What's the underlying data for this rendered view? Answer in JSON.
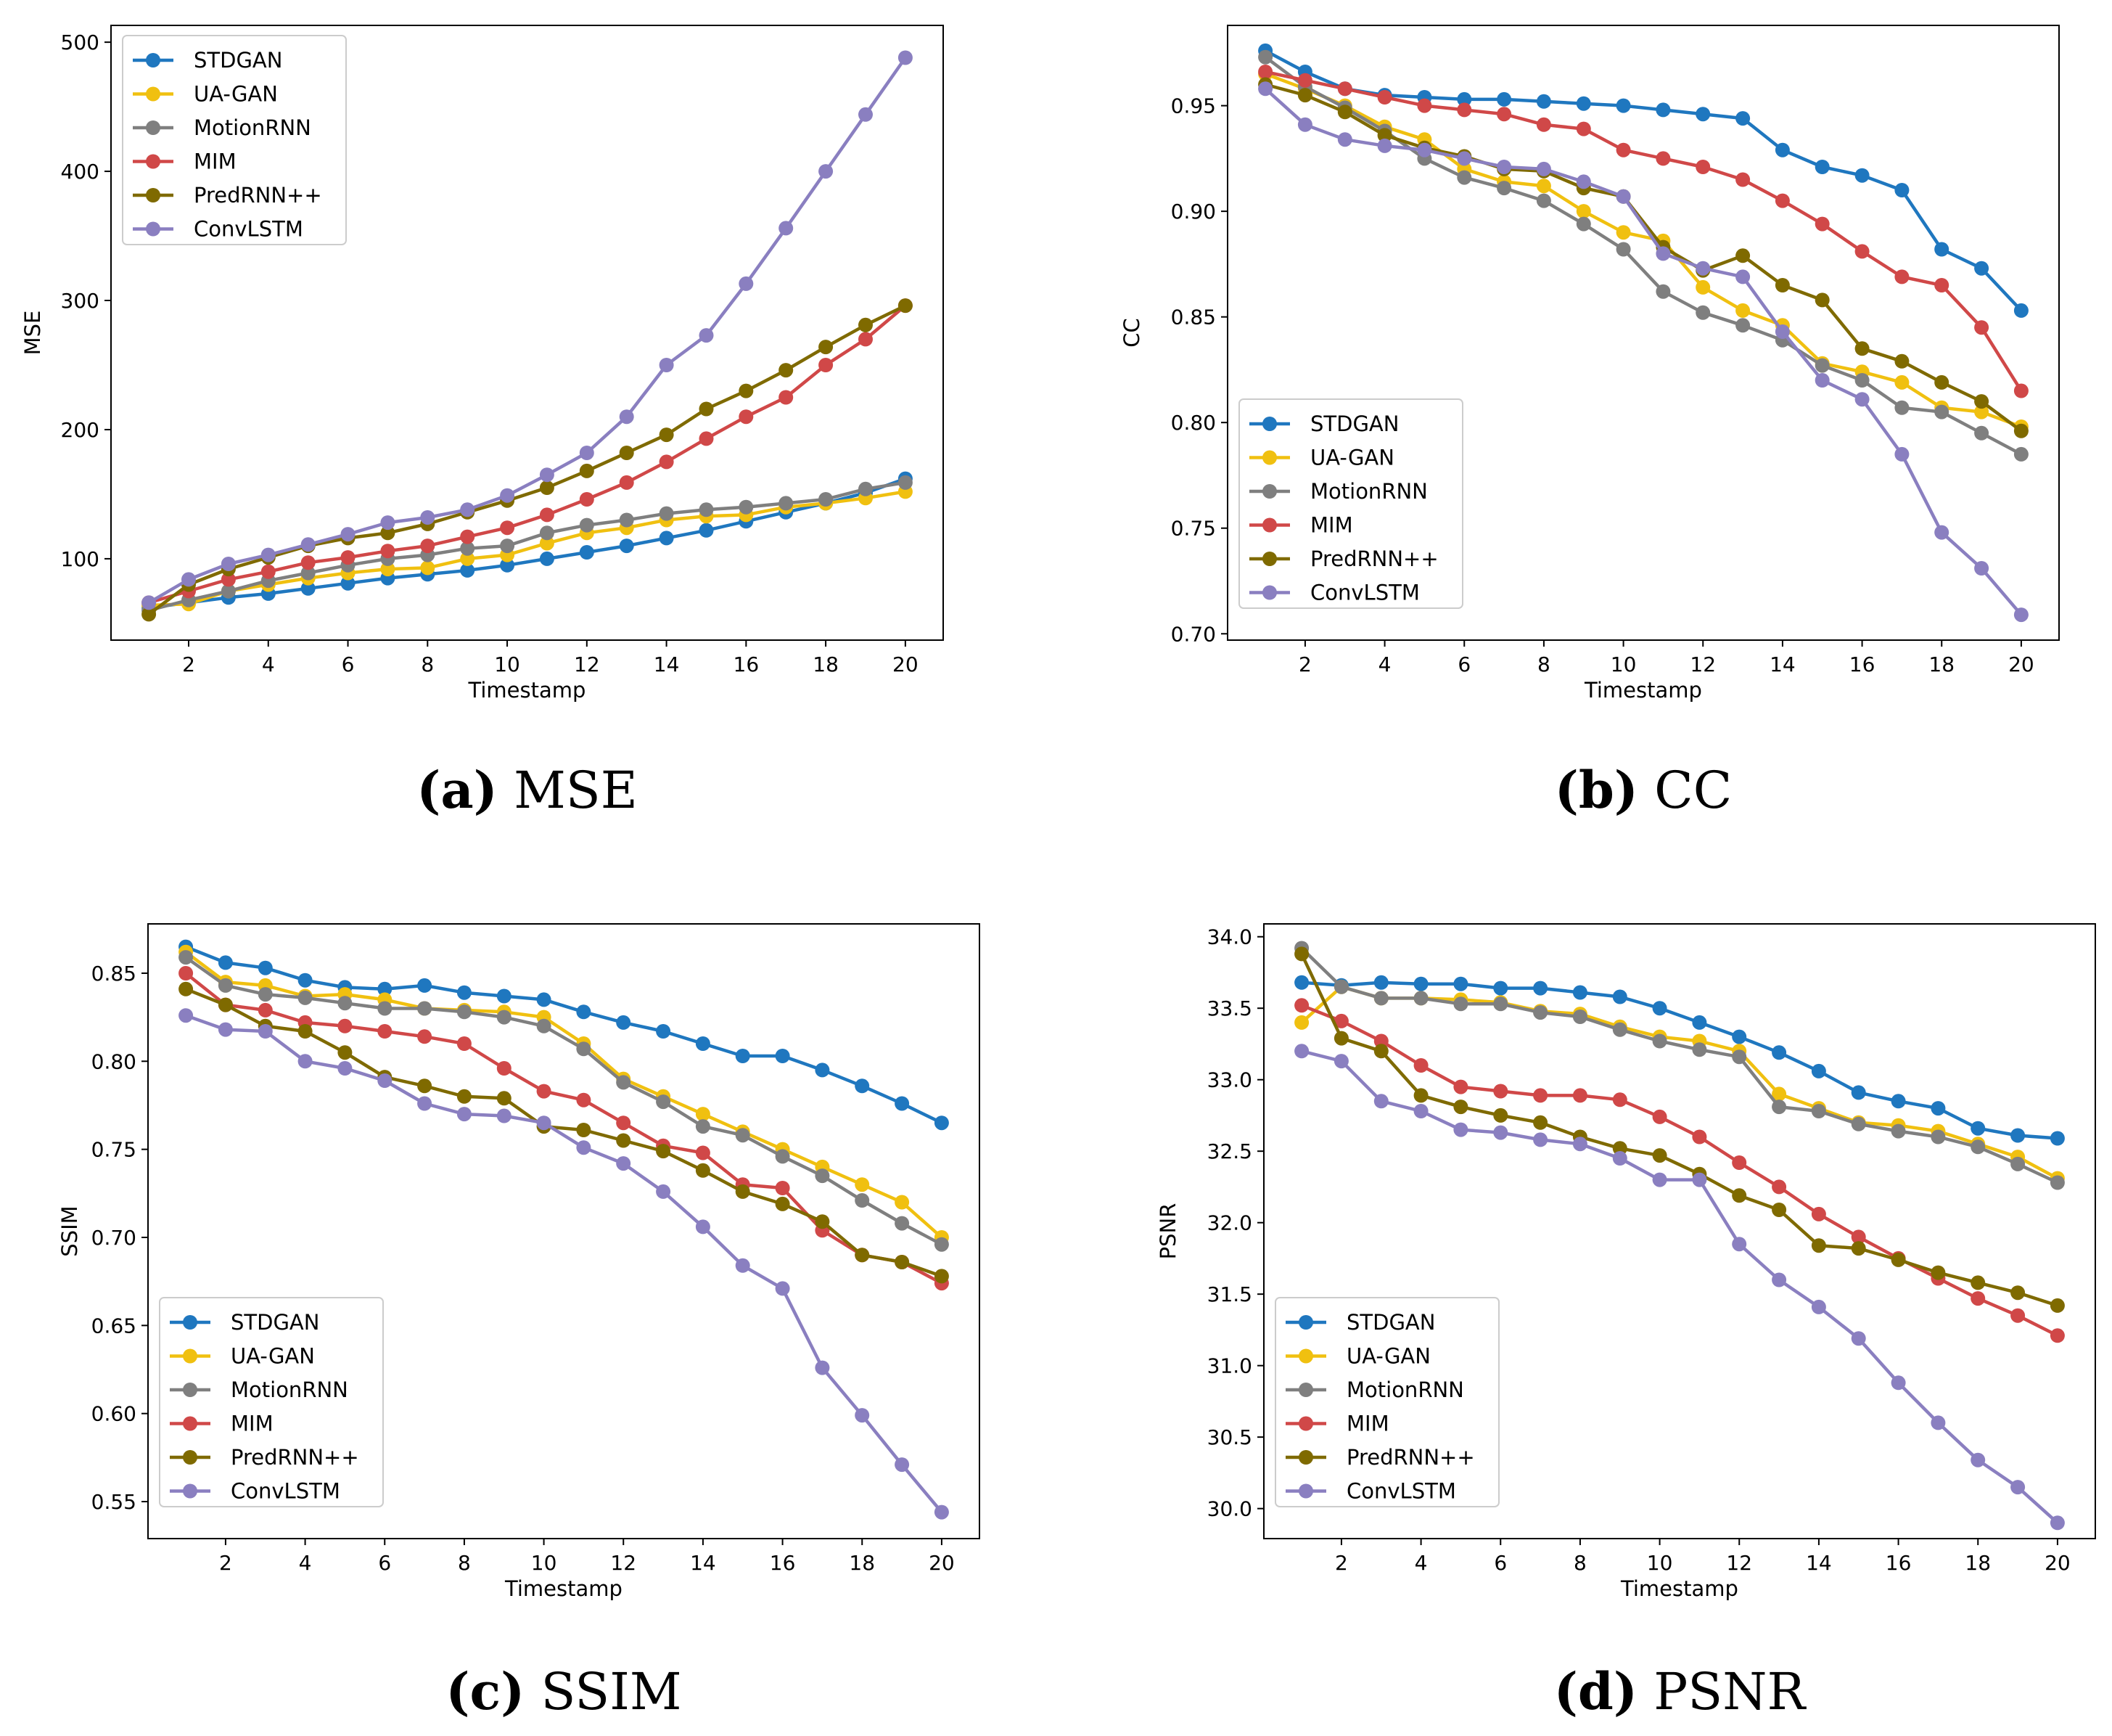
{
  "figure": {
    "series_names": [
      "STDGAN",
      "UA-GAN",
      "MotionRNN",
      "MIM",
      "PredRNN++",
      "ConvLSTM"
    ],
    "series_colors": [
      "#1f77bf",
      "#f0c010",
      "#7f7f7f",
      "#d04848",
      "#7f6a00",
      "#8a7fc0"
    ],
    "x": [
      1,
      2,
      3,
      4,
      5,
      6,
      7,
      8,
      9,
      10,
      11,
      12,
      13,
      14,
      15,
      16,
      17,
      18,
      19,
      20
    ]
  },
  "chart_data": [
    {
      "type": "line",
      "panel": "a",
      "caption_letter": "(a)",
      "caption_text": " MSE",
      "title": "",
      "xlabel": "Timestamp",
      "ylabel": "MSE",
      "xlim": [
        0.05,
        20.95
      ],
      "ylim": [
        37,
        513
      ],
      "xticks": [
        2,
        4,
        6,
        8,
        10,
        12,
        14,
        16,
        18,
        20
      ],
      "xtick_labels": [
        "2",
        "4",
        "6",
        "8",
        "10",
        "12",
        "14",
        "16",
        "18",
        "20"
      ],
      "yticks": [
        100,
        200,
        300,
        400,
        500
      ],
      "ytick_labels": [
        "100",
        "200",
        "300",
        "400",
        "500"
      ],
      "legend_position": "top-left",
      "series": [
        {
          "name": "STDGAN",
          "values": [
            62,
            66,
            70,
            73,
            77,
            81,
            85,
            88,
            91,
            95,
            100,
            105,
            110,
            116,
            122,
            129,
            136,
            143,
            151,
            162
          ]
        },
        {
          "name": "UA-GAN",
          "values": [
            64,
            65,
            75,
            80,
            85,
            89,
            92,
            93,
            100,
            103,
            112,
            120,
            124,
            130,
            133,
            134,
            140,
            143,
            147,
            152
          ]
        },
        {
          "name": "MotionRNN",
          "values": [
            60,
            68,
            75,
            83,
            89,
            95,
            100,
            103,
            108,
            110,
            120,
            126,
            130,
            135,
            138,
            140,
            143,
            146,
            154,
            159
          ]
        },
        {
          "name": "MIM",
          "values": [
            66,
            75,
            84,
            90,
            97,
            101,
            106,
            110,
            117,
            124,
            134,
            146,
            159,
            175,
            193,
            210,
            225,
            250,
            270,
            296
          ]
        },
        {
          "name": "PredRNN++",
          "values": [
            57,
            80,
            92,
            101,
            110,
            116,
            120,
            127,
            136,
            145,
            155,
            168,
            182,
            196,
            216,
            230,
            246,
            264,
            281,
            296
          ]
        },
        {
          "name": "ConvLSTM",
          "values": [
            66,
            84,
            96,
            103,
            111,
            119,
            128,
            132,
            138,
            149,
            165,
            182,
            210,
            250,
            273,
            313,
            356,
            400,
            444,
            488
          ]
        }
      ]
    },
    {
      "type": "line",
      "panel": "b",
      "caption_letter": "(b)",
      "caption_text": " CC",
      "title": "",
      "xlabel": "Timestamp",
      "ylabel": "CC",
      "xlim": [
        0.05,
        20.95
      ],
      "ylim": [
        0.697,
        0.988
      ],
      "xticks": [
        2,
        4,
        6,
        8,
        10,
        12,
        14,
        16,
        18,
        20
      ],
      "xtick_labels": [
        "2",
        "4",
        "6",
        "8",
        "10",
        "12",
        "14",
        "16",
        "18",
        "20"
      ],
      "yticks": [
        0.7,
        0.75,
        0.8,
        0.85,
        0.9,
        0.95
      ],
      "ytick_labels": [
        "0.70",
        "0.75",
        "0.80",
        "0.85",
        "0.90",
        "0.95"
      ],
      "legend_position": "bottom-left",
      "series": [
        {
          "name": "STDGAN",
          "values": [
            0.976,
            0.966,
            0.958,
            0.955,
            0.954,
            0.953,
            0.953,
            0.952,
            0.951,
            0.95,
            0.948,
            0.946,
            0.944,
            0.929,
            0.921,
            0.917,
            0.91,
            0.882,
            0.873,
            0.853
          ]
        },
        {
          "name": "UA-GAN",
          "values": [
            0.965,
            0.958,
            0.95,
            0.94,
            0.934,
            0.92,
            0.914,
            0.912,
            0.9,
            0.89,
            0.886,
            0.864,
            0.853,
            0.846,
            0.828,
            0.824,
            0.819,
            0.807,
            0.805,
            0.798
          ]
        },
        {
          "name": "MotionRNN",
          "values": [
            0.973,
            0.959,
            0.949,
            0.938,
            0.925,
            0.916,
            0.911,
            0.905,
            0.894,
            0.882,
            0.862,
            0.852,
            0.846,
            0.839,
            0.827,
            0.82,
            0.807,
            0.805,
            0.795,
            0.785
          ]
        },
        {
          "name": "MIM",
          "values": [
            0.966,
            0.962,
            0.958,
            0.954,
            0.95,
            0.948,
            0.946,
            0.941,
            0.939,
            0.929,
            0.925,
            0.921,
            0.915,
            0.905,
            0.894,
            0.881,
            0.869,
            0.865,
            0.845,
            0.815
          ]
        },
        {
          "name": "PredRNN++",
          "values": [
            0.96,
            0.955,
            0.947,
            0.936,
            0.93,
            0.926,
            0.92,
            0.919,
            0.911,
            0.907,
            0.883,
            0.872,
            0.879,
            0.865,
            0.858,
            0.835,
            0.829,
            0.819,
            0.81,
            0.796
          ]
        },
        {
          "name": "ConvLSTM",
          "values": [
            0.958,
            0.941,
            0.934,
            0.931,
            0.929,
            0.925,
            0.921,
            0.92,
            0.914,
            0.907,
            0.88,
            0.873,
            0.869,
            0.843,
            0.82,
            0.811,
            0.785,
            0.748,
            0.731,
            0.709
          ]
        }
      ]
    },
    {
      "type": "line",
      "panel": "c",
      "caption_letter": "(c)",
      "caption_text": " SSIM",
      "title": "",
      "xlabel": "Timestamp",
      "ylabel": "SSIM",
      "xlim": [
        0.05,
        20.95
      ],
      "ylim": [
        0.529,
        0.878
      ],
      "xticks": [
        2,
        4,
        6,
        8,
        10,
        12,
        14,
        16,
        18,
        20
      ],
      "xtick_labels": [
        "2",
        "4",
        "6",
        "8",
        "10",
        "12",
        "14",
        "16",
        "18",
        "20"
      ],
      "yticks": [
        0.55,
        0.6,
        0.65,
        0.7,
        0.75,
        0.8,
        0.85
      ],
      "ytick_labels": [
        "0.55",
        "0.60",
        "0.65",
        "0.70",
        "0.75",
        "0.80",
        "0.85"
      ],
      "legend_position": "bottom-left",
      "series": [
        {
          "name": "STDGAN",
          "values": [
            0.865,
            0.856,
            0.853,
            0.846,
            0.842,
            0.841,
            0.843,
            0.839,
            0.837,
            0.835,
            0.828,
            0.822,
            0.817,
            0.81,
            0.803,
            0.803,
            0.795,
            0.786,
            0.776,
            0.765
          ]
        },
        {
          "name": "UA-GAN",
          "values": [
            0.862,
            0.845,
            0.843,
            0.837,
            0.838,
            0.835,
            0.83,
            0.829,
            0.828,
            0.825,
            0.81,
            0.79,
            0.78,
            0.77,
            0.76,
            0.75,
            0.74,
            0.73,
            0.72,
            0.7
          ]
        },
        {
          "name": "MotionRNN",
          "values": [
            0.859,
            0.843,
            0.838,
            0.836,
            0.833,
            0.83,
            0.83,
            0.828,
            0.825,
            0.82,
            0.807,
            0.788,
            0.777,
            0.763,
            0.758,
            0.746,
            0.735,
            0.721,
            0.708,
            0.696
          ]
        },
        {
          "name": "MIM",
          "values": [
            0.85,
            0.832,
            0.829,
            0.822,
            0.82,
            0.817,
            0.814,
            0.81,
            0.796,
            0.783,
            0.778,
            0.765,
            0.752,
            0.748,
            0.73,
            0.728,
            0.704,
            0.69,
            0.686,
            0.674
          ]
        },
        {
          "name": "PredRNN++",
          "values": [
            0.841,
            0.832,
            0.82,
            0.817,
            0.805,
            0.791,
            0.786,
            0.78,
            0.779,
            0.763,
            0.761,
            0.755,
            0.749,
            0.738,
            0.726,
            0.719,
            0.709,
            0.69,
            0.686,
            0.678
          ]
        },
        {
          "name": "ConvLSTM",
          "values": [
            0.826,
            0.818,
            0.817,
            0.8,
            0.796,
            0.789,
            0.776,
            0.77,
            0.769,
            0.765,
            0.751,
            0.742,
            0.726,
            0.706,
            0.684,
            0.671,
            0.626,
            0.599,
            0.571,
            0.544
          ]
        }
      ]
    },
    {
      "type": "line",
      "panel": "d",
      "caption_letter": "(d)",
      "caption_text": " PSNR",
      "title": "",
      "xlabel": "Timestamp",
      "ylabel": "PSNR",
      "xlim": [
        0.05,
        20.95
      ],
      "ylim": [
        29.79,
        34.09
      ],
      "xticks": [
        2,
        4,
        6,
        8,
        10,
        12,
        14,
        16,
        18,
        20
      ],
      "xtick_labels": [
        "2",
        "4",
        "6",
        "8",
        "10",
        "12",
        "14",
        "16",
        "18",
        "20"
      ],
      "yticks": [
        30.0,
        30.5,
        31.0,
        31.5,
        32.0,
        32.5,
        33.0,
        33.5,
        34.0
      ],
      "ytick_labels": [
        "30.0",
        "30.5",
        "31.0",
        "31.5",
        "32.0",
        "32.5",
        "33.0",
        "33.5",
        "34.0"
      ],
      "legend_position": "bottom-left",
      "series": [
        {
          "name": "STDGAN",
          "values": [
            33.68,
            33.66,
            33.68,
            33.67,
            33.67,
            33.64,
            33.64,
            33.61,
            33.58,
            33.5,
            33.4,
            33.3,
            33.19,
            33.06,
            32.91,
            32.85,
            32.8,
            32.66,
            32.61,
            32.59
          ]
        },
        {
          "name": "UA-GAN",
          "values": [
            33.4,
            33.65,
            33.57,
            33.57,
            33.56,
            33.54,
            33.48,
            33.46,
            33.37,
            33.3,
            33.27,
            33.2,
            32.9,
            32.8,
            32.7,
            32.68,
            32.64,
            32.55,
            32.46,
            32.31
          ]
        },
        {
          "name": "MotionRNN",
          "values": [
            33.92,
            33.65,
            33.57,
            33.57,
            33.53,
            33.53,
            33.47,
            33.44,
            33.35,
            33.27,
            33.21,
            33.16,
            32.81,
            32.78,
            32.69,
            32.64,
            32.6,
            32.53,
            32.41,
            32.28
          ]
        },
        {
          "name": "MIM",
          "values": [
            33.52,
            33.41,
            33.27,
            33.1,
            32.95,
            32.92,
            32.89,
            32.89,
            32.86,
            32.74,
            32.6,
            32.42,
            32.25,
            32.06,
            31.9,
            31.75,
            31.61,
            31.47,
            31.35,
            31.21
          ]
        },
        {
          "name": "PredRNN++",
          "values": [
            33.88,
            33.29,
            33.2,
            32.89,
            32.81,
            32.75,
            32.7,
            32.6,
            32.52,
            32.47,
            32.34,
            32.19,
            32.09,
            31.84,
            31.82,
            31.74,
            31.65,
            31.58,
            31.51,
            31.42
          ]
        },
        {
          "name": "ConvLSTM",
          "values": [
            33.2,
            33.13,
            32.85,
            32.78,
            32.65,
            32.63,
            32.58,
            32.55,
            32.45,
            32.3,
            32.3,
            31.85,
            31.6,
            31.41,
            31.19,
            30.88,
            30.6,
            30.34,
            30.15,
            29.9
          ]
        }
      ]
    }
  ]
}
